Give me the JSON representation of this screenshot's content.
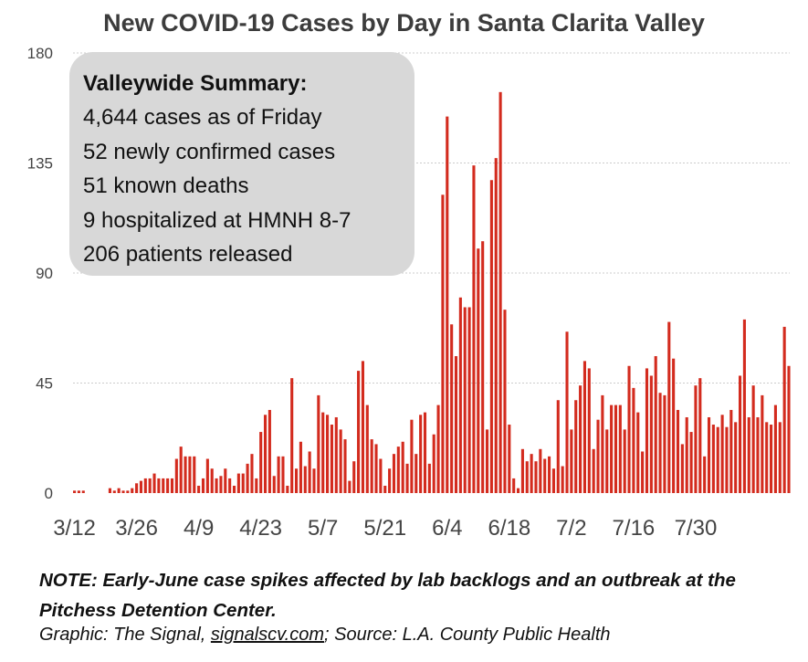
{
  "title": "New COVID-19 Cases by Day in Santa Clarita Valley",
  "summary": {
    "heading": "Valleywide Summary:",
    "lines": [
      "4,644 cases as of Friday",
      "52 newly confirmed cases",
      "51 known deaths",
      "9 hospitalized at HMNH 8-7",
      "206 patients released"
    ]
  },
  "note": "NOTE: Early-June case spikes affected by lab backlogs and an outbreak at the Pitchess Detention Center.",
  "credit": {
    "prefix": "Graphic: The Signal, ",
    "link": "signalscv.com",
    "suffix": "; Source: L.A. County Public Health"
  },
  "colors": {
    "bar": "#d32b1e",
    "grid": "#cccccc",
    "summary_bg": "#d8d8d8"
  },
  "chart_data": {
    "type": "bar",
    "title": "New COVID-19 Cases by Day in Santa Clarita Valley",
    "xlabel": "",
    "ylabel": "",
    "ylim": [
      0,
      180
    ],
    "yticks": [
      0,
      45,
      90,
      135,
      180
    ],
    "xtick_labels": [
      "3/12",
      "3/26",
      "4/9",
      "4/23",
      "5/7",
      "5/21",
      "6/4",
      "6/18",
      "7/2",
      "7/16",
      "7/30"
    ],
    "grid": true,
    "start_date": "3/12",
    "values": [
      1,
      1,
      1,
      0,
      0,
      0,
      0,
      0,
      2,
      1,
      2,
      1,
      1,
      2,
      4,
      5,
      6,
      6,
      8,
      6,
      6,
      6,
      6,
      14,
      19,
      15,
      15,
      15,
      3,
      6,
      14,
      10,
      6,
      7,
      10,
      6,
      3,
      8,
      8,
      12,
      16,
      6,
      25,
      32,
      34,
      7,
      15,
      15,
      3,
      47,
      10,
      21,
      11,
      17,
      10,
      40,
      33,
      32,
      28,
      31,
      26,
      22,
      5,
      13,
      50,
      54,
      36,
      22,
      20,
      14,
      3,
      10,
      16,
      19,
      21,
      12,
      30,
      16,
      32,
      33,
      12,
      24,
      36,
      122,
      154,
      69,
      56,
      80,
      76,
      76,
      134,
      100,
      103,
      26,
      128,
      137,
      164,
      75,
      28,
      6,
      2,
      18,
      13,
      16,
      13,
      18,
      14,
      15,
      10,
      38,
      11,
      66,
      26,
      38,
      44,
      54,
      51,
      18,
      30,
      40,
      26,
      36,
      36,
      36,
      26,
      52,
      43,
      33,
      17,
      51,
      48,
      56,
      41,
      40,
      70,
      55,
      34,
      20,
      31,
      25,
      44,
      47,
      15,
      31,
      28,
      27,
      32,
      27,
      34,
      29,
      48,
      71,
      31,
      44,
      31,
      40,
      29,
      28,
      36,
      29,
      68,
      52
    ]
  }
}
